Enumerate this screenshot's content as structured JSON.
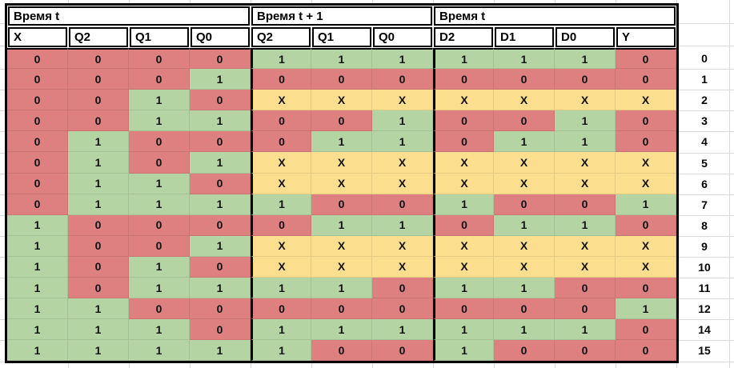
{
  "colors": {
    "red": "#df8080",
    "green": "#b4d5a3",
    "yellow": "#fcdf8e",
    "header_bg": "#ffffff",
    "border": "#000000",
    "grid": "#d9d9d9",
    "text": "#000000"
  },
  "value_colors": {
    "0": "red",
    "1": "green",
    "X": "yellow"
  },
  "header": {
    "groups": [
      {
        "label": "Время t",
        "span": 4
      },
      {
        "label": "Время t + 1",
        "span": 3
      },
      {
        "label": "Время t",
        "span": 4
      }
    ],
    "columns": [
      "X",
      "Q2",
      "Q1",
      "Q0",
      "Q2",
      "Q1",
      "Q0",
      "D2",
      "D1",
      "D0",
      "Y"
    ]
  },
  "rows": [
    {
      "num": "0",
      "cells": [
        "0",
        "0",
        "0",
        "0",
        "1",
        "1",
        "1",
        "1",
        "1",
        "1",
        "0"
      ]
    },
    {
      "num": "1",
      "cells": [
        "0",
        "0",
        "0",
        "1",
        "0",
        "0",
        "0",
        "0",
        "0",
        "0",
        "0"
      ]
    },
    {
      "num": "2",
      "cells": [
        "0",
        "0",
        "1",
        "0",
        "X",
        "X",
        "X",
        "X",
        "X",
        "X",
        "X"
      ]
    },
    {
      "num": "3",
      "cells": [
        "0",
        "0",
        "1",
        "1",
        "0",
        "0",
        "1",
        "0",
        "0",
        "1",
        "0"
      ]
    },
    {
      "num": "4",
      "cells": [
        "0",
        "1",
        "0",
        "0",
        "0",
        "1",
        "1",
        "0",
        "1",
        "1",
        "0"
      ]
    },
    {
      "num": "5",
      "cells": [
        "0",
        "1",
        "0",
        "1",
        "X",
        "X",
        "X",
        "X",
        "X",
        "X",
        "X"
      ]
    },
    {
      "num": "6",
      "cells": [
        "0",
        "1",
        "1",
        "0",
        "X",
        "X",
        "X",
        "X",
        "X",
        "X",
        "X"
      ]
    },
    {
      "num": "7",
      "cells": [
        "0",
        "1",
        "1",
        "1",
        "1",
        "0",
        "0",
        "1",
        "0",
        "0",
        "1"
      ]
    },
    {
      "num": "8",
      "cells": [
        "1",
        "0",
        "0",
        "0",
        "0",
        "1",
        "1",
        "0",
        "1",
        "1",
        "0"
      ]
    },
    {
      "num": "9",
      "cells": [
        "1",
        "0",
        "0",
        "1",
        "X",
        "X",
        "X",
        "X",
        "X",
        "X",
        "X"
      ]
    },
    {
      "num": "10",
      "cells": [
        "1",
        "0",
        "1",
        "0",
        "X",
        "X",
        "X",
        "X",
        "X",
        "X",
        "X"
      ]
    },
    {
      "num": "11",
      "cells": [
        "1",
        "0",
        "1",
        "1",
        "1",
        "1",
        "0",
        "1",
        "1",
        "0",
        "0"
      ]
    },
    {
      "num": "12",
      "cells": [
        "1",
        "1",
        "0",
        "0",
        "0",
        "0",
        "0",
        "0",
        "0",
        "0",
        "1"
      ]
    },
    {
      "num": "14",
      "cells": [
        "1",
        "1",
        "1",
        "0",
        "1",
        "1",
        "1",
        "1",
        "1",
        "1",
        "0"
      ]
    },
    {
      "num": "15",
      "cells": [
        "1",
        "1",
        "1",
        "1",
        "1",
        "0",
        "0",
        "1",
        "0",
        "0",
        "0"
      ]
    }
  ]
}
